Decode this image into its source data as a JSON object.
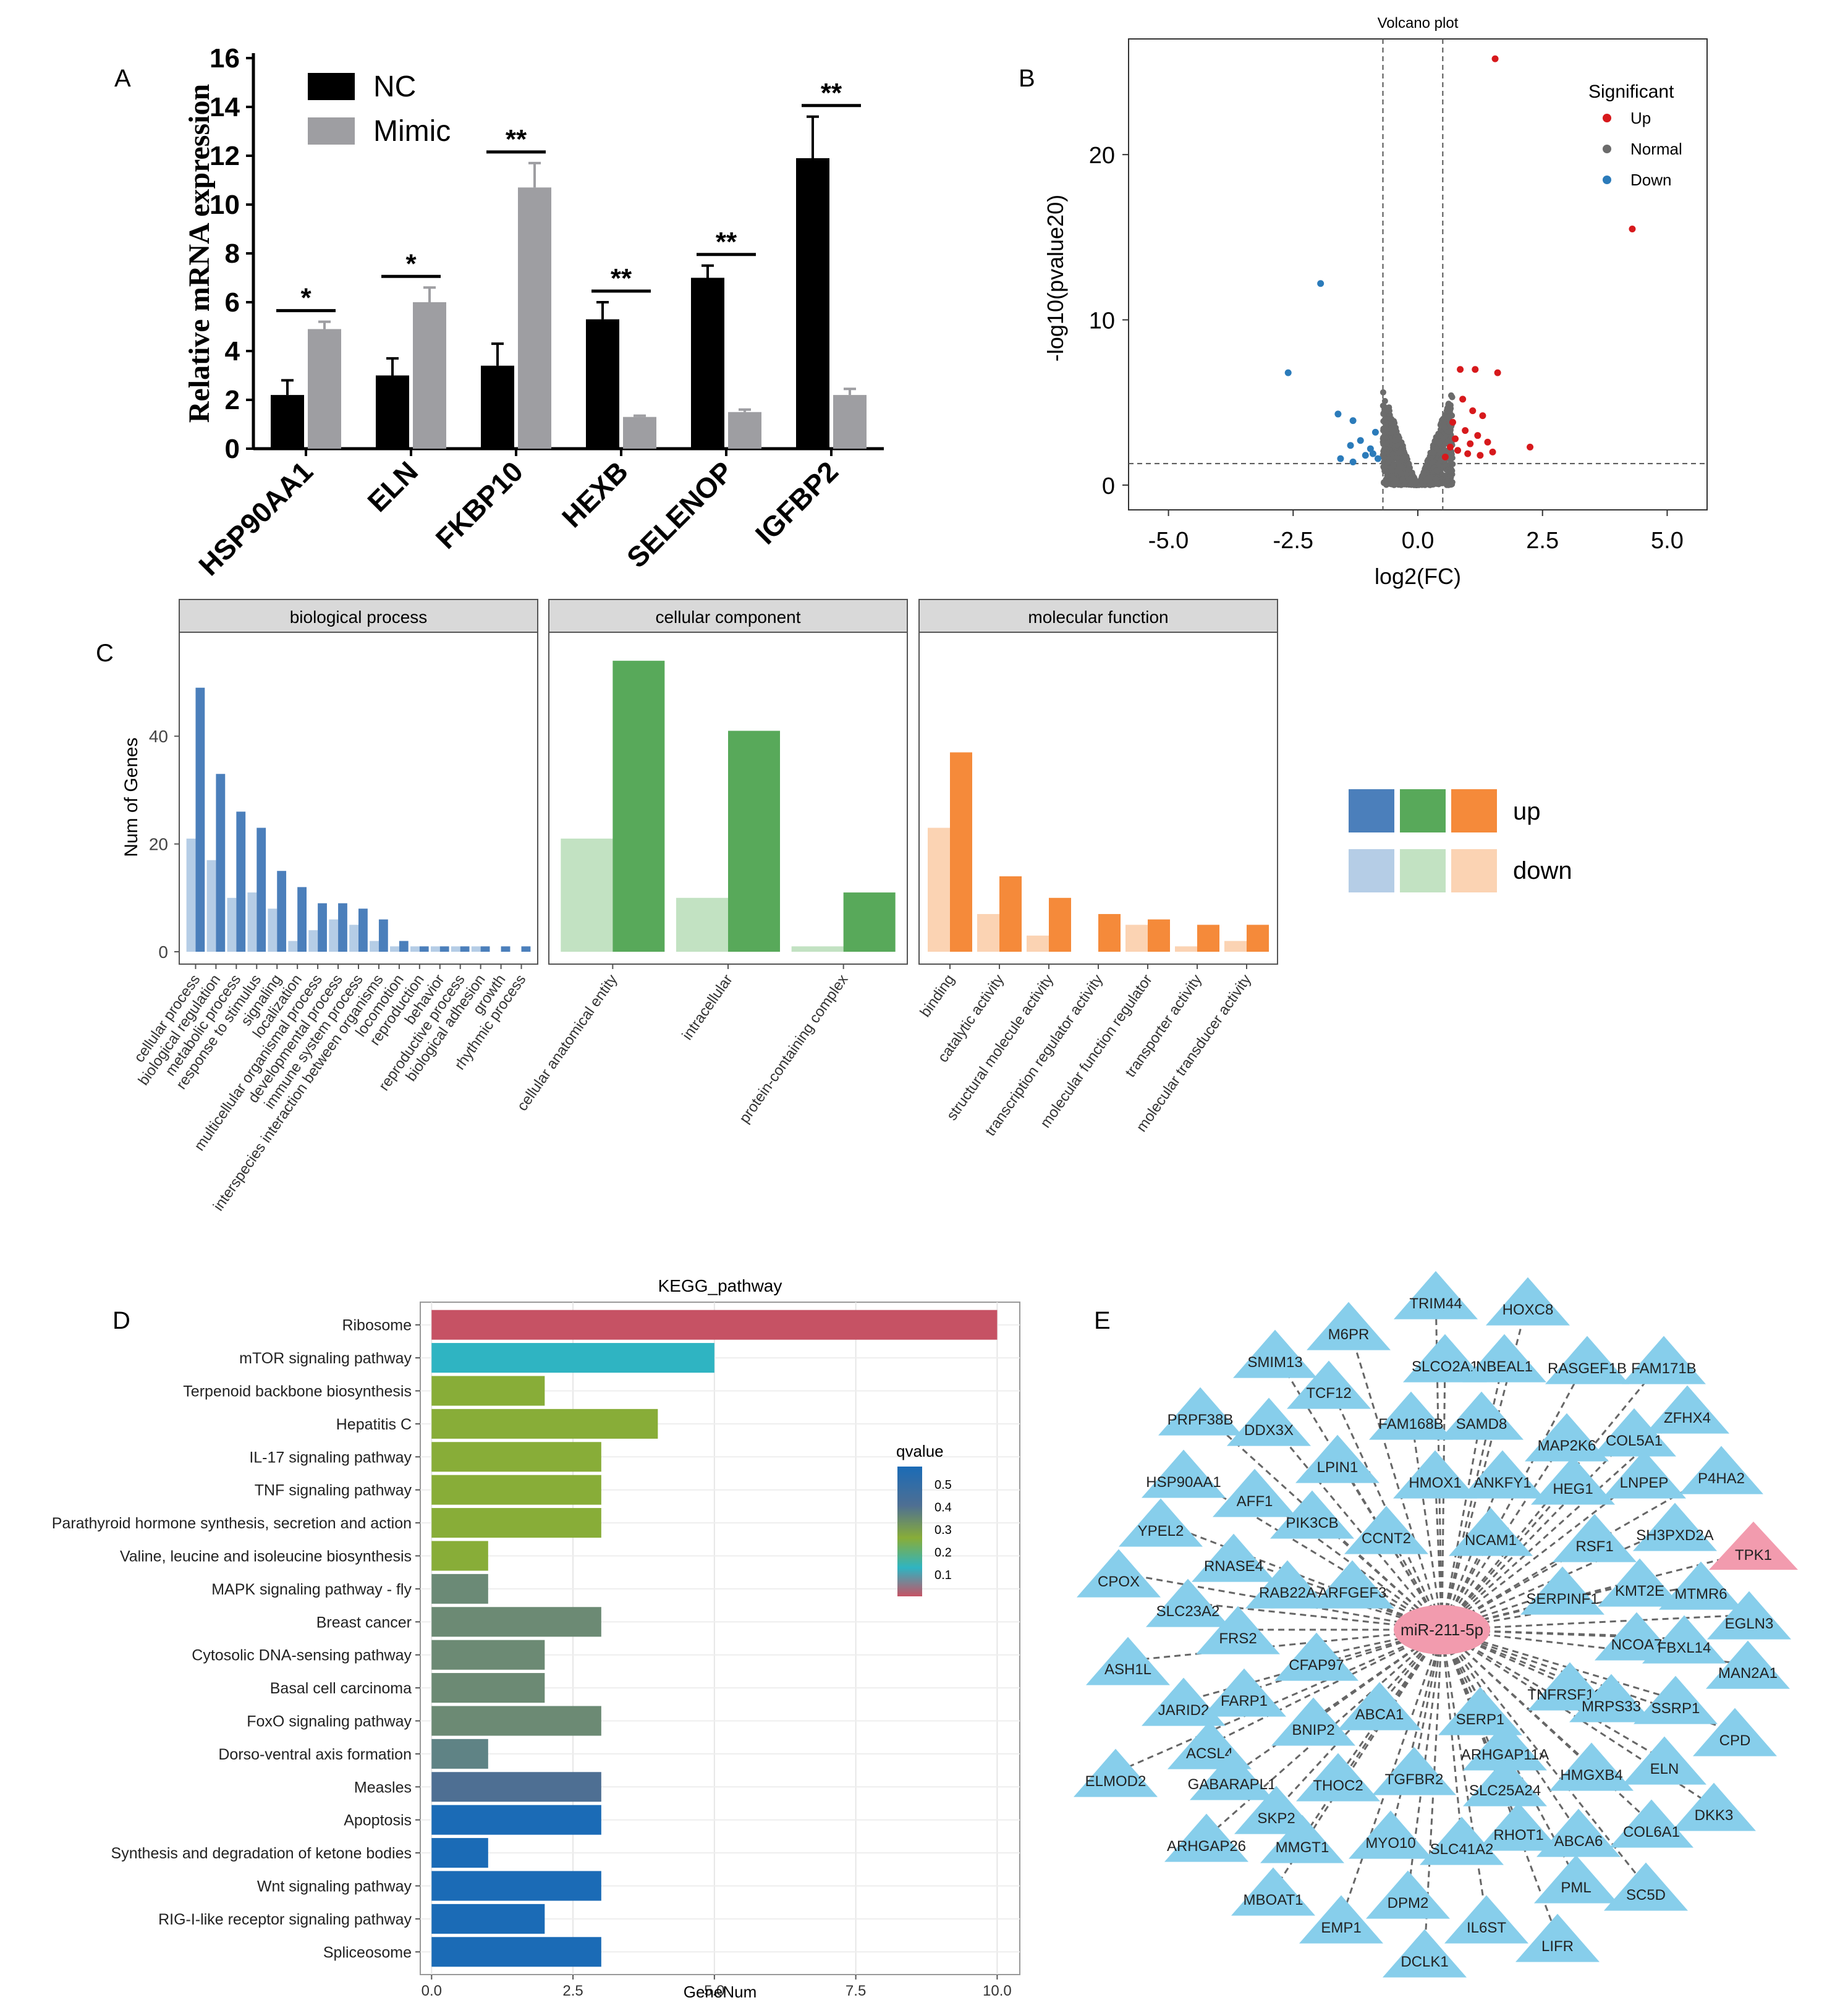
{
  "panel_labels": {
    "A": "A",
    "B": "B",
    "C": "C",
    "D": "D",
    "E": "E"
  },
  "chart_data": [
    {
      "panel": "A",
      "type": "bar",
      "ylabel": "Relative mRNA expression",
      "ylim": [
        0,
        16
      ],
      "yticks": [
        "0",
        "2",
        "4",
        "6",
        "8",
        "10",
        "12",
        "14",
        "16"
      ],
      "categories": [
        "HSP90AA1",
        "ELN",
        "FKBP10",
        "HEXB",
        "SELENOP",
        "IGFBP2"
      ],
      "series": [
        {
          "name": "NC",
          "values": [
            2.2,
            3.0,
            3.4,
            5.3,
            7.0,
            11.9
          ],
          "errors": [
            0.6,
            0.7,
            0.9,
            0.7,
            0.5,
            1.7
          ],
          "color": "#000000"
        },
        {
          "name": "Mimic",
          "values": [
            4.9,
            6.0,
            10.7,
            1.3,
            1.5,
            2.2
          ],
          "errors": [
            0.3,
            0.6,
            1.0,
            0.05,
            0.1,
            0.25
          ],
          "color": "#9e9ea2"
        }
      ],
      "significance": [
        "*",
        "*",
        "**",
        "**",
        "**",
        "**"
      ],
      "legend": [
        "NC",
        "Mimic"
      ]
    },
    {
      "panel": "B",
      "type": "scatter",
      "title": "Volcano plot",
      "xlabel": "log2(FC)",
      "ylabel": "-log10(pvalue20)",
      "xlim": [
        -5.8,
        5.8
      ],
      "ylim": [
        -1.5,
        27
      ],
      "xticks": [
        "-5.0",
        "-2.5",
        "0.0",
        "2.5",
        "5.0"
      ],
      "yticks": [
        "0",
        "10",
        "20"
      ],
      "legend_title": "Significant",
      "legend": [
        {
          "name": "Up",
          "color": "#d7191c"
        },
        {
          "name": "Normal",
          "color": "#6b6b6b"
        },
        {
          "name": "Down",
          "color": "#2b7bba"
        }
      ],
      "thresholds": {
        "x": [
          -0.7,
          0.5
        ],
        "y": 1.3
      },
      "up_points": [
        [
          1.55,
          25.8
        ],
        [
          4.3,
          15.5
        ],
        [
          0.85,
          7.0
        ],
        [
          1.15,
          7.0
        ],
        [
          1.6,
          6.8
        ],
        [
          2.25,
          2.3
        ],
        [
          0.9,
          5.2
        ],
        [
          1.1,
          4.5
        ],
        [
          1.3,
          4.2
        ],
        [
          0.7,
          3.8
        ],
        [
          0.95,
          3.3
        ],
        [
          1.2,
          3.0
        ],
        [
          1.4,
          2.6
        ],
        [
          0.65,
          2.3
        ],
        [
          0.8,
          2.1
        ],
        [
          1.0,
          1.9
        ],
        [
          1.25,
          1.8
        ],
        [
          0.55,
          1.7
        ],
        [
          1.5,
          2.0
        ],
        [
          0.75,
          2.8
        ],
        [
          1.05,
          2.5
        ]
      ],
      "down_points": [
        [
          -1.95,
          12.2
        ],
        [
          -2.6,
          6.8
        ],
        [
          -1.6,
          4.3
        ],
        [
          -1.3,
          3.9
        ],
        [
          -1.55,
          1.6
        ],
        [
          -1.3,
          1.4
        ],
        [
          -0.95,
          2.2
        ],
        [
          -1.15,
          2.7
        ],
        [
          -0.85,
          3.2
        ],
        [
          -1.05,
          1.8
        ],
        [
          -0.8,
          1.6
        ],
        [
          -1.35,
          2.4
        ],
        [
          -0.9,
          1.9
        ]
      ],
      "normal_cloud": "dense symmetric V-shaped cloud centred at 0"
    },
    {
      "panel": "C",
      "type": "bar",
      "ylabel": "Num of Genes",
      "ylim": [
        0,
        57
      ],
      "yticks": [
        "0",
        "20",
        "40"
      ],
      "legend": [
        "up",
        "down"
      ],
      "facets": [
        {
          "title": "biological process",
          "color_up": "#4b7fbb",
          "color_down": "#b5cde6",
          "categories": [
            "cellular process",
            "biological regulation",
            "metabolic process",
            "response to stimulus",
            "signaling",
            "localization",
            "multicellular organismal process",
            "developmental process",
            "immune system process",
            "interspecies interaction between organisms",
            "locomotion",
            "reproduction",
            "behavior",
            "reproductive process",
            "biological adhesion",
            "growth",
            "rhythmic process"
          ],
          "up": [
            49,
            33,
            26,
            23,
            15,
            12,
            9,
            9,
            8,
            6,
            2,
            1,
            1,
            1,
            1,
            1,
            1
          ],
          "down": [
            21,
            17,
            10,
            11,
            8,
            2,
            4,
            6,
            5,
            2,
            1,
            1,
            1,
            1,
            1,
            0,
            0
          ]
        },
        {
          "title": "cellular component",
          "color_up": "#58a95a",
          "color_down": "#c2e2c2",
          "categories": [
            "cellular anatomical entity",
            "intracellular",
            "protein-containing complex"
          ],
          "up": [
            54,
            41,
            11
          ],
          "down": [
            21,
            10,
            1
          ]
        },
        {
          "title": "molecular function",
          "color_up": "#f58a3a",
          "color_down": "#fbd3b3",
          "categories": [
            "binding",
            "catalytic activity",
            "structural molecule activity",
            "transcription regulator activity",
            "molecular function regulator",
            "transporter activity",
            "molecular transducer activity"
          ],
          "up": [
            37,
            14,
            10,
            7,
            6,
            5,
            5
          ],
          "down": [
            23,
            7,
            3,
            0,
            5,
            1,
            2
          ]
        }
      ]
    },
    {
      "panel": "D",
      "type": "bar",
      "title": "KEGG_pathway",
      "xlabel": "GeneNum",
      "xlim": [
        -0.2,
        10.4
      ],
      "xticks": [
        "0.0",
        "2.5",
        "5.0",
        "7.5",
        "10.0"
      ],
      "colorbar_title": "qvalue",
      "colorbar_ticks": [
        "0.5",
        "0.4",
        "0.3",
        "0.2",
        "0.1"
      ],
      "categories": [
        "Ribosome",
        "mTOR signaling pathway",
        "Terpenoid backbone biosynthesis",
        "Hepatitis C",
        "IL-17 signaling pathway",
        "TNF signaling pathway",
        "Parathyroid hormone synthesis, secretion and action",
        "Valine, leucine and isoleucine biosynthesis",
        "MAPK signaling pathway - fly",
        "Breast cancer",
        "Cytosolic DNA-sensing pathway",
        "Basal cell carcinoma",
        "FoxO signaling pathway",
        "Dorso-ventral axis formation",
        "Measles",
        "Apoptosis",
        "Synthesis and degradation of ketone bodies",
        "Wnt signaling pathway",
        "RIG-I-like receptor signaling pathway",
        "Spliceosome"
      ],
      "values": [
        10,
        5,
        2,
        4,
        3,
        3,
        3,
        1,
        1,
        3,
        2,
        2,
        3,
        1,
        3,
        3,
        1,
        3,
        2,
        3
      ],
      "colors": [
        "#c65264",
        "#2fb4c2",
        "#88ad38",
        "#88ad38",
        "#88ad38",
        "#88ad38",
        "#88ad38",
        "#88ad38",
        "#6b8a76",
        "#6c8a74",
        "#6c8a74",
        "#6c8a74",
        "#6c8a74",
        "#5f8385",
        "#4e6f93",
        "#1b6bb6",
        "#1b6bb6",
        "#1b6bb6",
        "#1b6bb6",
        "#1b6bb6"
      ]
    }
  ],
  "network": {
    "center": "miR-211-5p",
    "up_node": "TPK1",
    "nodes": [
      "TRIM44",
      "HOXC8",
      "M6PR",
      "SMIM13",
      "SLCO2A1",
      "NBEAL1",
      "RASGEF1B",
      "FAM171B",
      "TCF12",
      "PRPF38B",
      "DDX3X",
      "FAM168B",
      "SAMD8",
      "MAP2K6",
      "COL5A1",
      "ZFHX4",
      "LPIN1",
      "HSP90AA1",
      "HMOX1",
      "ANKFY1",
      "HEG1",
      "LNPEP",
      "P4HA2",
      "AFF1",
      "YPEL2",
      "PIK3CB",
      "CCNT2",
      "NCAM1",
      "RSF1",
      "SH3PXD2A",
      "RNASE4",
      "CPOX",
      "RAB22A",
      "ARFGEF3",
      "SERPINF1",
      "KMT2E",
      "MTMR6",
      "SLC23A2",
      "EGLN3",
      "FRS2",
      "NCOA7",
      "FBXL14",
      "ASH1L",
      "CFAP97",
      "MAN2A1",
      "JARID2",
      "FARP1",
      "TNFRSF12A",
      "MRPS33",
      "SSRP1",
      "ABCA1",
      "SERP1",
      "BNIP2",
      "CPD",
      "ACSL4",
      "ARHGAP11A",
      "ELMOD2",
      "GABARAPL1",
      "THOC2",
      "TGFBR2",
      "HMGXB4",
      "ELN",
      "SLC25A24",
      "DKK3",
      "SKP2",
      "ARHGAP26",
      "MMGT1",
      "MYO10",
      "RHOT1",
      "ABCA6",
      "COL6A1",
      "SLC41A2",
      "MBOAT1",
      "DPM2",
      "PML",
      "SC5D",
      "EMP1",
      "IL6ST",
      "LIFR",
      "DCLK1"
    ]
  }
}
